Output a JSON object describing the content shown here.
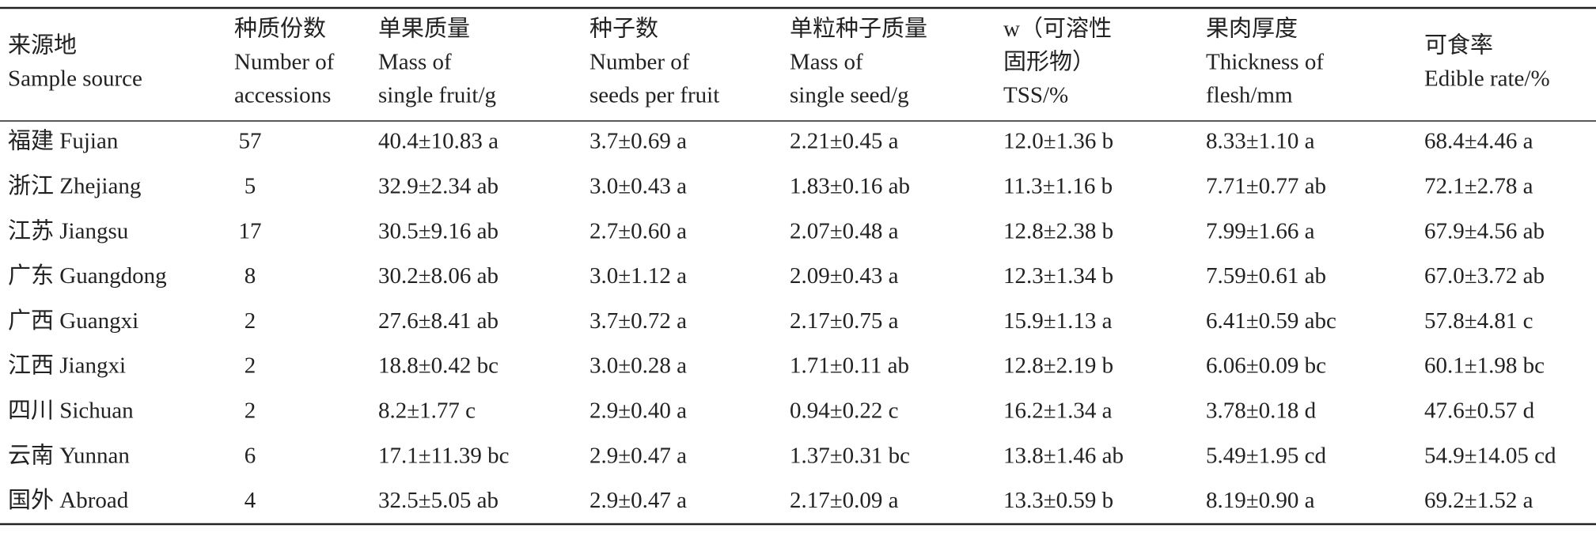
{
  "table": {
    "header": [
      [
        "来源地",
        "Sample source"
      ],
      [
        "种质份数",
        "Number of",
        "accessions"
      ],
      [
        "单果质量",
        "Mass of",
        "single fruit/g"
      ],
      [
        "种子数",
        "Number of",
        "seeds per fruit"
      ],
      [
        "单粒种子质量",
        "Mass of",
        "single seed/g"
      ],
      [
        "w（可溶性",
        "固形物）",
        "TSS/%"
      ],
      [
        "果肉厚度",
        "Thickness of",
        "flesh/mm"
      ],
      [
        "可食率",
        "Edible rate/%"
      ]
    ],
    "rows": [
      [
        "福建 Fujian",
        "57",
        "40.4±10.83 a",
        "3.7±0.69 a",
        "2.21±0.45 a",
        "12.0±1.36 b",
        "8.33±1.10 a",
        "68.4±4.46 a"
      ],
      [
        "浙江 Zhejiang",
        "5",
        "32.9±2.34 ab",
        "3.0±0.43 a",
        "1.83±0.16 ab",
        "11.3±1.16 b",
        "7.71±0.77 ab",
        "72.1±2.78 a"
      ],
      [
        "江苏 Jiangsu",
        "17",
        "30.5±9.16 ab",
        "2.7±0.60 a",
        "2.07±0.48 a",
        "12.8±2.38 b",
        "7.99±1.66 a",
        "67.9±4.56 ab"
      ],
      [
        "广东 Guangdong",
        "8",
        "30.2±8.06 ab",
        "3.0±1.12 a",
        "2.09±0.43 a",
        "12.3±1.34 b",
        "7.59±0.61 ab",
        "67.0±3.72 ab"
      ],
      [
        "广西 Guangxi",
        "2",
        "27.6±8.41 ab",
        "3.7±0.72 a",
        "2.17±0.75 a",
        "15.9±1.13 a",
        "6.41±0.59 abc",
        "57.8±4.81 c"
      ],
      [
        "江西 Jiangxi",
        "2",
        "18.8±0.42 bc",
        "3.0±0.28 a",
        "1.71±0.11 ab",
        "12.8±2.19 b",
        "6.06±0.09 bc",
        "60.1±1.98 bc"
      ],
      [
        "四川 Sichuan",
        "2",
        "8.2±1.77 c",
        "2.9±0.40 a",
        "0.94±0.22 c",
        "16.2±1.34 a",
        "3.78±0.18 d",
        "47.6±0.57 d"
      ],
      [
        "云南 Yunnan",
        "6",
        "17.1±11.39 bc",
        "2.9±0.47 a",
        "1.37±0.31 bc",
        "13.8±1.46 ab",
        "5.49±1.95 cd",
        "54.9±14.05 cd"
      ],
      [
        "国外 Abroad",
        "4",
        "32.5±5.05 ab",
        "2.9±0.47 a",
        "2.17±0.09 a",
        "13.3±0.59 b",
        "8.19±0.90 a",
        "69.2±1.52 a"
      ]
    ]
  }
}
